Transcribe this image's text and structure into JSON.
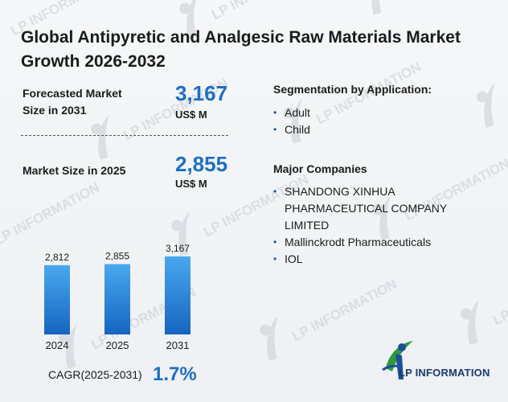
{
  "title": "Global Antipyretic and Analgesic Raw Materials Market Growth 2026-2032",
  "metrics": {
    "forecast": {
      "label_line1": "Forecasted Market",
      "label_line2": "Size in 2031",
      "value": "3,167",
      "unit": "US$ M"
    },
    "current": {
      "label": "Market Size in 2025",
      "value": "2,855",
      "unit": "US$ M"
    }
  },
  "segmentation": {
    "heading": "Segmentation by Application:",
    "items": [
      "Adult",
      "Child"
    ]
  },
  "companies": {
    "heading": "Major Companies",
    "items": [
      "SHANDONG XINHUA PHARMACEUTICAL COMPANY LIMITED",
      "Mallinckrodt Pharmaceuticals",
      "IOL"
    ]
  },
  "cagr": {
    "label": "CAGR(2025-2031)",
    "value": "1.7%"
  },
  "logo": {
    "text": "LP INFORMATION"
  },
  "watermark": {
    "text": "LP INFORMATION"
  },
  "colors": {
    "accent": "#1f6fc0",
    "bar_top": "#4aa8ee",
    "bar_bottom": "#1565c0"
  },
  "chart_data": {
    "type": "bar",
    "categories": [
      "2024",
      "2025",
      "2031"
    ],
    "values": [
      2812,
      2855,
      3167
    ],
    "value_labels": [
      "2,812",
      "2,855",
      "3,167"
    ],
    "title": "",
    "xlabel": "",
    "ylabel": "",
    "ylim": [
      0,
      3300
    ],
    "grid": false
  }
}
